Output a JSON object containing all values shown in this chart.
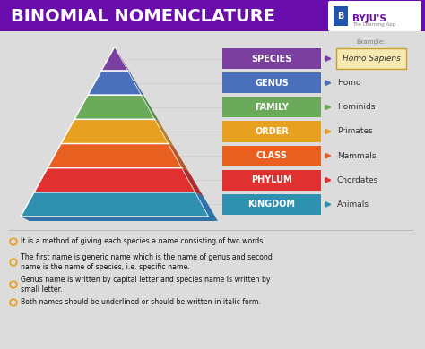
{
  "title": "BINOMIAL NOMENCLATURE",
  "title_bg": "#6a0dad",
  "title_color": "#ffffff",
  "bg_color": "#dcdcdc",
  "pyramid_levels": [
    {
      "label": "SPECIES",
      "color": "#7b3fa0",
      "dark": "#4e2266",
      "example": "Homo Sapiens",
      "example_highlight": true
    },
    {
      "label": "GENUS",
      "color": "#4a6fbb",
      "dark": "#2e4f8a",
      "example": "Homo"
    },
    {
      "label": "FAMILY",
      "color": "#6aaa5a",
      "dark": "#3d7a30",
      "example": "Hominids"
    },
    {
      "label": "ORDER",
      "color": "#e8a020",
      "dark": "#b07010",
      "example": "Primates"
    },
    {
      "label": "CLASS",
      "color": "#e86020",
      "dark": "#b04010",
      "example": "Mammals"
    },
    {
      "label": "PHYLUM",
      "color": "#e03030",
      "dark": "#a01010",
      "example": "Chordates"
    },
    {
      "label": "KINGDOM",
      "color": "#3090b0",
      "dark": "#1060a0",
      "example": "Animals"
    }
  ],
  "bullet_color": "#e8a020",
  "bullet_points": [
    "It is a method of giving each species a name consisting of two words.",
    "The first name is generic name which is the name of genus and second\nname is the name of species, i.e. specific name.",
    "Genus name is written by capital letter and species name is written by\nsmall letter.",
    "Both names should be underlined or should be written in italic form."
  ],
  "example_label": "Example:",
  "byju_text": "BYJU'S",
  "byju_sub": "The Learning App",
  "byju_color": "#6a0dad"
}
